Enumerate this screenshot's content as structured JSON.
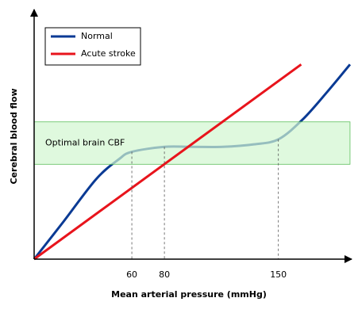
{
  "chart_data": {
    "type": "line",
    "xlabel": "Mean arterial pressure (mmHg)",
    "ylabel": "Cerebral blood flow",
    "xlim": [
      0,
      195
    ],
    "xticks": [
      60,
      80,
      150
    ],
    "ylim": [
      0,
      100
    ],
    "yticks": [],
    "band": {
      "label": "Optimal brain CBF",
      "y": [
        38,
        55
      ],
      "color": "#d2f7d0",
      "edge": "#5cbf5c"
    },
    "series": [
      {
        "name": "Normal",
        "color": "#0a3a94",
        "x": [
          0,
          18,
          38,
          52,
          60,
          80,
          96,
          116,
          135,
          150,
          165,
          180,
          194
        ],
        "values": [
          0,
          15,
          32,
          40,
          43,
          45,
          45,
          45,
          46,
          48,
          56,
          67,
          78
        ]
      },
      {
        "name": "Acute stroke",
        "color": "#e8141c",
        "x": [
          0,
          164
        ],
        "values": [
          0,
          78
        ]
      }
    ],
    "legend": "upper left"
  }
}
